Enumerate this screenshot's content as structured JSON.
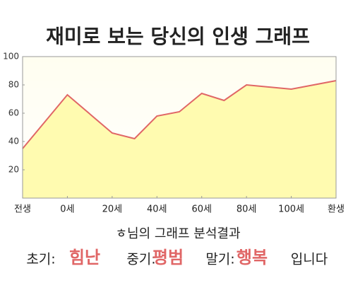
{
  "chart_data": {
    "type": "area",
    "title": "재미로 보는 당신의 인생 그래프",
    "x": [
      -20,
      0,
      20,
      30,
      40,
      50,
      60,
      70,
      80,
      100,
      120
    ],
    "values": [
      35,
      73,
      46,
      42,
      58,
      61,
      74,
      69,
      80,
      77,
      83
    ],
    "color": "#e06666",
    "fill": "#fffbb0",
    "xlim": [
      -20,
      120
    ],
    "xticks": [
      {
        "value": -20,
        "label": "전생"
      },
      {
        "value": 0,
        "label": "0세"
      },
      {
        "value": 20,
        "label": "20세"
      },
      {
        "value": 40,
        "label": "40세"
      },
      {
        "value": 60,
        "label": "60세"
      },
      {
        "value": 80,
        "label": "80세"
      },
      {
        "value": 100,
        "label": "100세"
      },
      {
        "value": 120,
        "label": "환생"
      }
    ],
    "ylim": [
      0,
      100
    ],
    "yticks": [
      20,
      40,
      60,
      80,
      100
    ],
    "analysis_title": "ㅎ님의 그래프 분석결과",
    "analysis": [
      {
        "label": "초기:",
        "value": "힘난"
      },
      {
        "label": "중기:",
        "value": "평범"
      },
      {
        "label": "말기:",
        "value": "행복"
      }
    ],
    "analysis_end": "입니다"
  }
}
